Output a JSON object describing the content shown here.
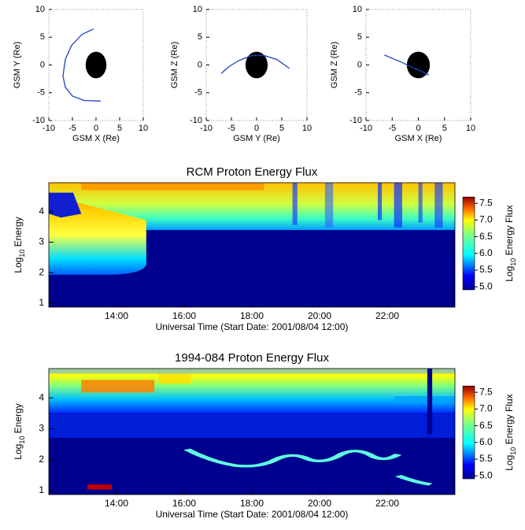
{
  "chart_data": [
    {
      "type": "line",
      "x_label": "GSM X (Re)",
      "y_label": "GSM Y (Re)",
      "xlim": [
        -10,
        10
      ],
      "ylim": [
        -10,
        10
      ],
      "xticks": [
        -10,
        -5,
        0,
        5,
        10
      ],
      "yticks": [
        -10,
        -5,
        0,
        5,
        10
      ],
      "series": [
        {
          "color": "#2040c0",
          "x": [
            -0.5,
            -3,
            -5.2,
            -6.5,
            -7,
            -6.5,
            -5,
            -2.5,
            1
          ],
          "values": [
            6.5,
            5.5,
            3.5,
            1,
            -2,
            -4,
            -5.6,
            -6.4,
            -6.5
          ]
        }
      ]
    },
    {
      "type": "line",
      "x_label": "GSM Y (Re)",
      "y_label": "GSM Z (Re)",
      "xlim": [
        -10,
        10
      ],
      "ylim": [
        -10,
        10
      ],
      "xticks": [
        -10,
        -5,
        0,
        5,
        10
      ],
      "yticks": [
        -10,
        -5,
        0,
        5,
        10
      ],
      "series": [
        {
          "color": "#2040c0",
          "x": [
            -7,
            -5.5,
            -3.5,
            -1,
            1.5,
            4,
            6.5
          ],
          "values": [
            -1.5,
            -0.3,
            0.8,
            1.7,
            1.7,
            1,
            -0.6
          ]
        }
      ]
    },
    {
      "type": "line",
      "x_label": "GSM X (Re)",
      "y_label": "GSM Z (Re)",
      "xlim": [
        -10,
        10
      ],
      "ylim": [
        -10,
        10
      ],
      "xticks": [
        -10,
        -5,
        0,
        5,
        10
      ],
      "yticks": [
        -10,
        -5,
        0,
        5,
        10
      ],
      "series": [
        {
          "color": "#2040c0",
          "x": [
            -6.5,
            -5,
            -3,
            -1,
            0.5,
            2
          ],
          "values": [
            1.8,
            1.2,
            0.4,
            -0.5,
            -1.1,
            -1.8
          ]
        }
      ]
    },
    {
      "type": "heatmap",
      "title": "RCM Proton Energy Flux",
      "x_label": "Universal Time (Start Date: 2001/08/04 12:00)",
      "y_label_parts": [
        "Log",
        "10",
        " Energy"
      ],
      "xlim": [
        12,
        24
      ],
      "xticks": [
        {
          "value": 14,
          "label": "14:00"
        },
        {
          "value": 16,
          "label": "16:00"
        },
        {
          "value": 18,
          "label": "18:00"
        },
        {
          "value": 20,
          "label": "20:00"
        },
        {
          "value": 22,
          "label": "22:00"
        }
      ],
      "ylim": [
        0.87,
        4.95
      ],
      "yticks": [
        1,
        2,
        3,
        4
      ],
      "colorbar": {
        "label_parts": [
          "Log",
          "10",
          " Energy Flux"
        ],
        "lim": [
          4.91,
          7.69
        ],
        "ticks": [
          {
            "value": 5,
            "label": "5.0"
          },
          5.5,
          {
            "value": 6,
            "label": "6.0"
          },
          6.5,
          {
            "value": 7,
            "label": "7.0"
          },
          7.5
        ]
      }
    },
    {
      "type": "heatmap",
      "title": "1994-084 Proton Energy Flux",
      "x_label": "Universal Time (Start Date: 2001/08/04 12:00)",
      "y_label_parts": [
        "Log",
        "10",
        " Energy"
      ],
      "xlim": [
        12,
        24
      ],
      "xticks": [
        {
          "value": 14,
          "label": "14:00"
        },
        {
          "value": 16,
          "label": "16:00"
        },
        {
          "value": 18,
          "label": "18:00"
        },
        {
          "value": 20,
          "label": "20:00"
        },
        {
          "value": 22,
          "label": "22:00"
        }
      ],
      "ylim": [
        0.87,
        4.95
      ],
      "yticks": [
        1,
        2,
        3,
        4
      ],
      "colorbar": {
        "label_parts": [
          "Log",
          "10",
          " Energy Flux"
        ],
        "lim": [
          4.91,
          7.69
        ],
        "ticks": [
          {
            "value": 5,
            "label": "5.0"
          },
          5.5,
          {
            "value": 6,
            "label": "6.0"
          },
          6.5,
          {
            "value": 7,
            "label": "7.0"
          },
          7.5
        ]
      }
    }
  ]
}
